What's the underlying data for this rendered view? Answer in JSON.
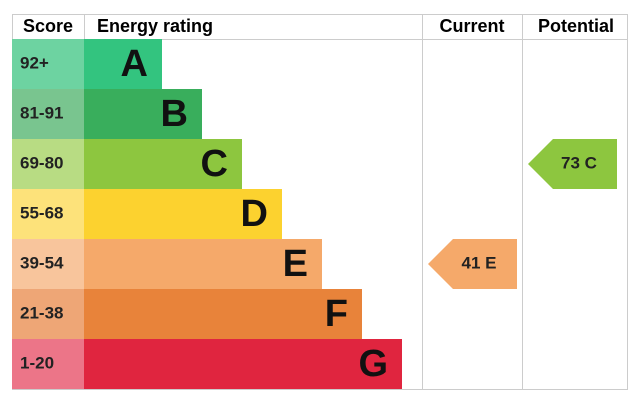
{
  "header": {
    "score": "Score",
    "rating": "Energy rating",
    "current": "Current",
    "potential": "Potential"
  },
  "rows": [
    {
      "score": "92+",
      "band": "A",
      "color": "#33c47f",
      "light": "#6dd3a1"
    },
    {
      "score": "81-91",
      "band": "B",
      "color": "#39ae5c",
      "light": "#79c58f"
    },
    {
      "score": "69-80",
      "band": "C",
      "color": "#8dc63f",
      "light": "#b8dc83"
    },
    {
      "score": "55-68",
      "band": "D",
      "color": "#fcd22f",
      "light": "#fde27a"
    },
    {
      "score": "39-54",
      "band": "E",
      "color": "#f5a96a",
      "light": "#f8c59c"
    },
    {
      "score": "21-38",
      "band": "F",
      "color": "#e8833a",
      "light": "#eea676"
    },
    {
      "score": "1-20",
      "band": "G",
      "color": "#e0253f",
      "light": "#ec7588"
    }
  ],
  "current": {
    "label": "41 E",
    "row": 4
  },
  "potential": {
    "label": "73 C",
    "row": 2
  }
}
